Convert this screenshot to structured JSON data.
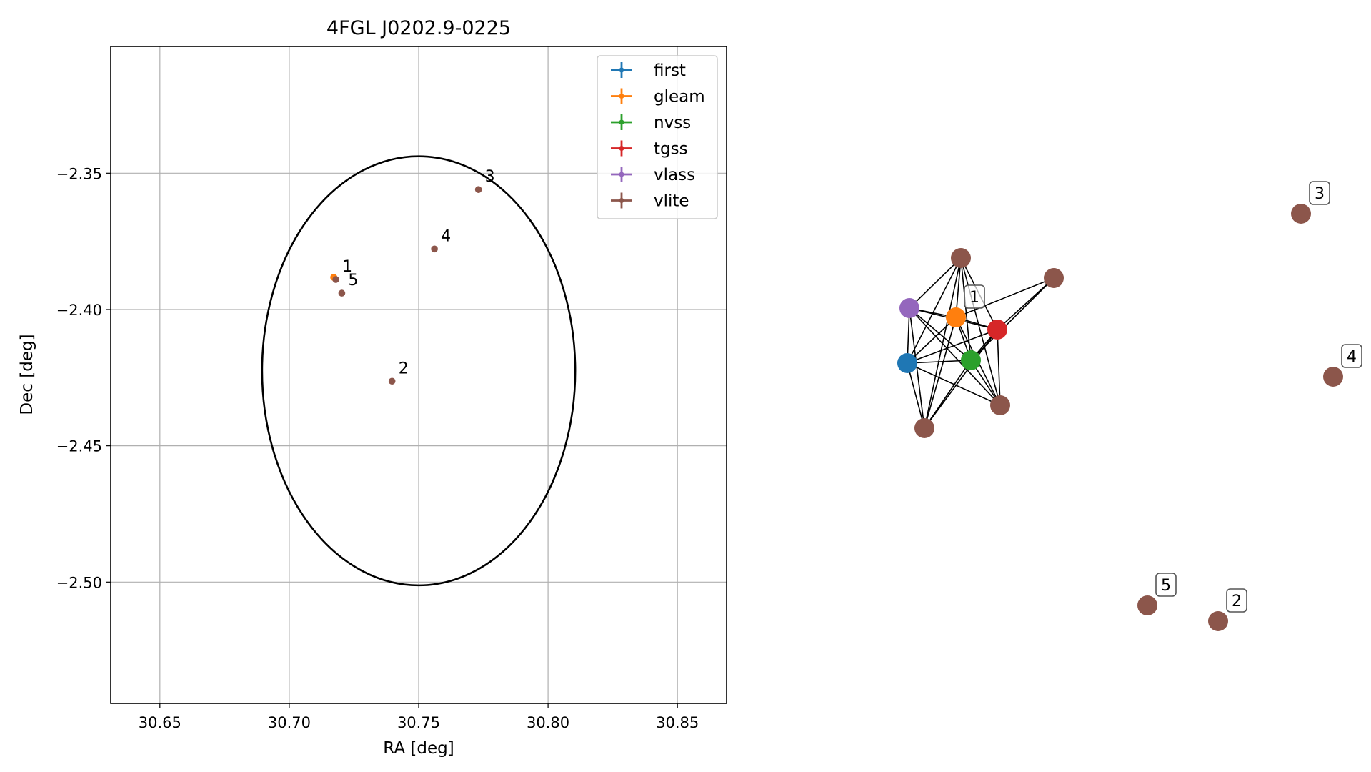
{
  "chart_data": [
    {
      "type": "scatter",
      "title": "4FGL J0202.9-0225",
      "xlabel": "RA [deg]",
      "ylabel": "Dec [deg]",
      "xlim": [
        30.631,
        30.869
      ],
      "ylim": [
        -2.5445,
        -2.3035
      ],
      "xticks": [
        30.65,
        30.7,
        30.75,
        30.8,
        30.85
      ],
      "xtick_labels": [
        "30.65",
        "30.70",
        "30.75",
        "30.80",
        "30.85"
      ],
      "yticks": [
        -2.35,
        -2.4,
        -2.45,
        -2.5
      ],
      "ytick_labels": [
        "−2.35",
        "−2.40",
        "−2.45",
        "−2.50"
      ],
      "grid": true,
      "legend_position": "top-right",
      "legend": [
        {
          "label": "first",
          "color": "#1f77b4"
        },
        {
          "label": "gleam",
          "color": "#ff7f0e"
        },
        {
          "label": "nvss",
          "color": "#2ca02c"
        },
        {
          "label": "tgss",
          "color": "#d62728"
        },
        {
          "label": "vlass",
          "color": "#9467bd"
        },
        {
          "label": "vlite",
          "color": "#8c564b"
        }
      ],
      "points": [
        {
          "series": "gleam",
          "x": 30.7172,
          "y": -2.3882,
          "label": ""
        },
        {
          "series": "vlite",
          "x": 30.718,
          "y": -2.389,
          "label": "1"
        },
        {
          "series": "vlite",
          "x": 30.7203,
          "y": -2.394,
          "label": "5"
        },
        {
          "series": "vlite",
          "x": 30.7397,
          "y": -2.4263,
          "label": "2"
        },
        {
          "series": "vlite",
          "x": 30.7561,
          "y": -2.3778,
          "label": "4"
        },
        {
          "series": "vlite",
          "x": 30.7731,
          "y": -2.356,
          "label": "3"
        }
      ],
      "error_ellipse": {
        "center_x": 30.75,
        "center_y": -2.4225,
        "semi_x": 0.0605,
        "semi_y": 0.0787
      }
    },
    {
      "type": "other",
      "graph": {
        "labeled_nodes": [
          "1",
          "3",
          "4",
          "5",
          "2"
        ],
        "colors": {
          "first": "#1f77b4",
          "gleam": "#ff7f0e",
          "nvss": "#2ca02c",
          "tgss": "#d62728",
          "vlass": "#9467bd",
          "vlite": "#8c564b"
        }
      }
    }
  ]
}
